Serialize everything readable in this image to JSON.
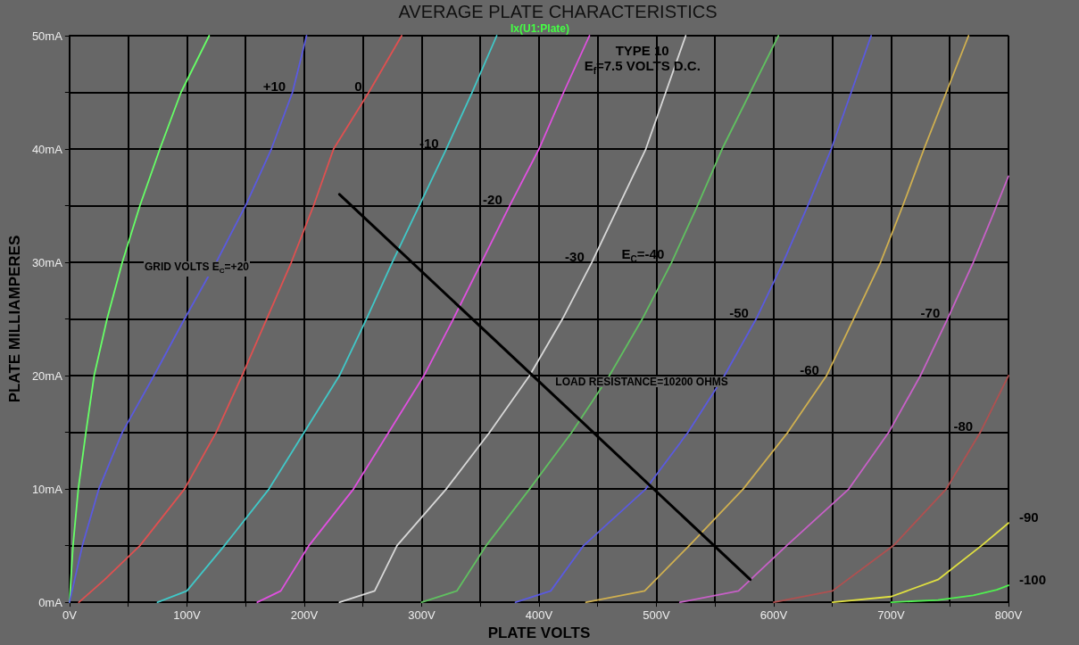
{
  "chart_data": {
    "type": "line",
    "title": "AVERAGE PLATE CHARACTERISTICS",
    "subtitle": "Ix(U1:Plate)",
    "xlabel": "PLATE VOLTS",
    "ylabel": "PLATE MILLIAMPERES",
    "xlim": [
      0,
      800
    ],
    "ylim": [
      0,
      50
    ],
    "xticks": [
      {
        "value": 0,
        "label": "0V"
      },
      {
        "value": 50,
        "label": null
      },
      {
        "value": 100,
        "label": "100V"
      },
      {
        "value": 150,
        "label": null
      },
      {
        "value": 200,
        "label": "200V"
      },
      {
        "value": 250,
        "label": null
      },
      {
        "value": 300,
        "label": "300V"
      },
      {
        "value": 350,
        "label": null
      },
      {
        "value": 400,
        "label": "400V"
      },
      {
        "value": 450,
        "label": null
      },
      {
        "value": 500,
        "label": "500V"
      },
      {
        "value": 550,
        "label": null
      },
      {
        "value": 600,
        "label": "600V"
      },
      {
        "value": 650,
        "label": null
      },
      {
        "value": 700,
        "label": "700V"
      },
      {
        "value": 750,
        "label": null
      },
      {
        "value": 800,
        "label": "800V"
      }
    ],
    "yticks": [
      {
        "value": 0,
        "label": "0mA"
      },
      {
        "value": 5,
        "label": null
      },
      {
        "value": 10,
        "label": "10mA"
      },
      {
        "value": 15,
        "label": null
      },
      {
        "value": 20,
        "label": "20mA"
      },
      {
        "value": 25,
        "label": null
      },
      {
        "value": 30,
        "label": "30mA"
      },
      {
        "value": 35,
        "label": null
      },
      {
        "value": 40,
        "label": "40mA"
      },
      {
        "value": 45,
        "label": null
      },
      {
        "value": 50,
        "label": "50mA"
      }
    ],
    "grid": true,
    "marker": "none",
    "line_style": "solid",
    "series": [
      {
        "color": "#66ff66",
        "x": [
          0,
          3,
          7.5,
          14,
          21,
          32,
          45,
          60,
          77,
          95,
          119
        ],
        "values": [
          0,
          5,
          10,
          15,
          20,
          25,
          30,
          35,
          40,
          45,
          50
        ]
      },
      {
        "color": "#5a5ae0",
        "x": [
          0,
          11,
          25,
          45,
          72,
          98,
          125,
          150,
          172,
          190,
          202
        ],
        "values": [
          0,
          5,
          10,
          15,
          20,
          25,
          30,
          35,
          40,
          45,
          50
        ]
      },
      {
        "color": "#e05050",
        "x": [
          8,
          30,
          60,
          98,
          125,
          147,
          168,
          189,
          208,
          225,
          255,
          283
        ],
        "values": [
          0,
          2,
          5,
          10,
          15,
          20,
          25,
          30,
          35,
          40,
          45,
          50
        ]
      },
      {
        "color": "#40c8c8",
        "x": [
          75,
          100,
          132,
          170,
          200,
          230,
          253,
          275,
          298,
          321,
          343,
          364
        ],
        "values": [
          0,
          1,
          5,
          10,
          15,
          20,
          25,
          30,
          35,
          40,
          45,
          50
        ]
      },
      {
        "color": "#e050e0",
        "x": [
          160,
          180,
          204,
          242,
          272,
          302,
          327,
          351,
          375,
          400,
          421,
          443
        ],
        "values": [
          0,
          1,
          5,
          10,
          15,
          20,
          25,
          30,
          35,
          40,
          45,
          50
        ]
      },
      {
        "color": "#d8d8d8",
        "x": [
          230,
          260,
          279,
          321,
          358,
          392,
          420,
          445,
          468,
          491,
          508,
          525
        ],
        "values": [
          0,
          1,
          5,
          10,
          15,
          20,
          25,
          30,
          35,
          40,
          45,
          50
        ]
      },
      {
        "color": "#60c060",
        "x": [
          300,
          330,
          355,
          392,
          428,
          460,
          488,
          513,
          535,
          556,
          580,
          604
        ],
        "values": [
          0,
          1,
          5,
          10,
          15,
          20,
          25,
          30,
          35,
          40,
          45,
          50
        ]
      },
      {
        "color": "#5a5ae0",
        "x": [
          380,
          410,
          438,
          491,
          527,
          558,
          585,
          608,
          629,
          649,
          666,
          683
        ],
        "values": [
          0,
          1,
          5,
          10,
          15,
          20,
          25,
          30,
          35,
          40,
          45,
          50
        ]
      },
      {
        "color": "#d0b050",
        "x": [
          440,
          490,
          528,
          574,
          612,
          645,
          668,
          691,
          710,
          728,
          747,
          766
        ],
        "values": [
          0,
          1,
          5,
          10,
          15,
          20,
          25,
          30,
          35,
          40,
          45,
          50
        ]
      },
      {
        "color": "#c860c8",
        "x": [
          520,
          570,
          611,
          664,
          698,
          725,
          748,
          770,
          786,
          800
        ],
        "values": [
          0,
          1,
          5,
          10,
          15,
          20,
          25,
          30,
          34,
          37.6
        ]
      },
      {
        "color": "#b05050",
        "x": [
          600,
          650,
          702,
          747,
          776,
          800
        ],
        "values": [
          0,
          1,
          5,
          10,
          15,
          20
        ]
      },
      {
        "color": "#e0e040",
        "x": [
          650,
          700,
          740,
          777,
          800
        ],
        "values": [
          0,
          0.5,
          2,
          5,
          7
        ]
      },
      {
        "color": "#50f050",
        "x": [
          700,
          740,
          770,
          790,
          800
        ],
        "values": [
          0,
          0.2,
          0.6,
          1.1,
          1.5
        ]
      },
      {
        "color": "#000000",
        "x": [
          230,
          580
        ],
        "values": [
          36,
          2
        ]
      }
    ],
    "annotations": [
      {
        "text": "GRID VOLTS E$_{C}$=+20",
        "x": 45,
        "y": 30
      },
      {
        "text": "+10",
        "x": 190,
        "y": 45
      },
      {
        "text": "0",
        "x": 255,
        "y": 45
      },
      {
        "text": "-10",
        "x": 321,
        "y": 40
      },
      {
        "text": "-20",
        "x": 375,
        "y": 35
      },
      {
        "text": "-30",
        "x": 445,
        "y": 30
      },
      {
        "text": "E$_{C}$=-40",
        "x": 513,
        "y": 30
      },
      {
        "text": "-50",
        "x": 585,
        "y": 25
      },
      {
        "text": "-60",
        "x": 645,
        "y": 20
      },
      {
        "text": "-70",
        "x": 748,
        "y": 25
      },
      {
        "text": "-80",
        "x": 776,
        "y": 15
      },
      {
        "text": "-90",
        "x": 800,
        "y": 7
      },
      {
        "text": "-100",
        "x": 800,
        "y": 1.5
      },
      {
        "text": "LOAD RESISTANCE=10200 OHMS",
        "x": 395,
        "y": 20
      },
      "TYPE 10",
      "E$_{f}$=7.5 VOLTS D.C."
    ]
  }
}
